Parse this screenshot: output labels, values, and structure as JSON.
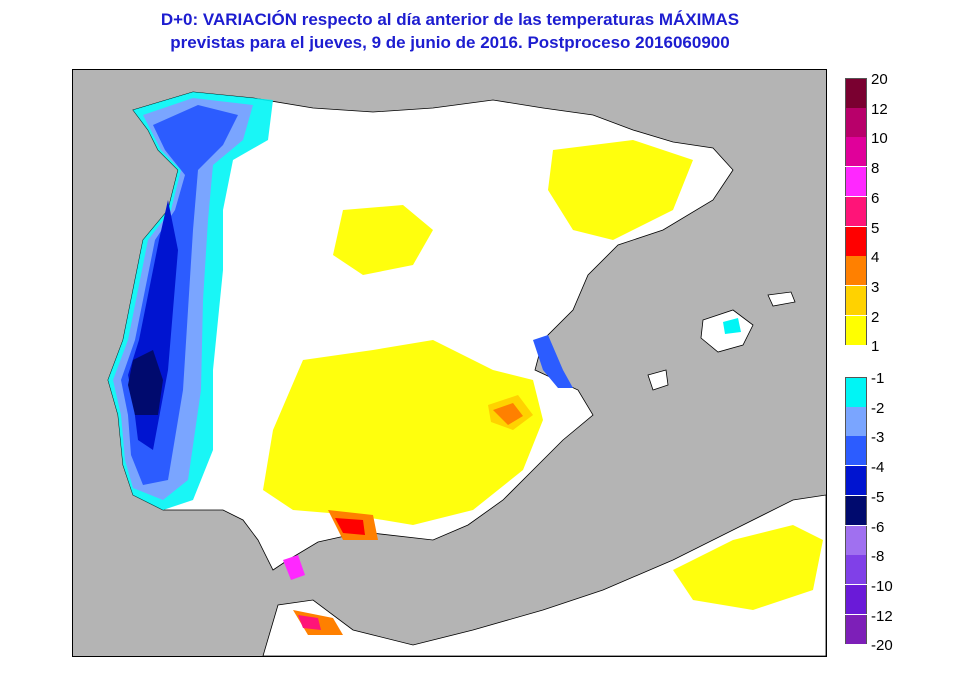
{
  "title": {
    "line1": "D+0:  VARIACIÓN respecto al día anterior de las temperaturas MÁXIMAS",
    "line2": "previstas para el jueves, 9 de junio de 2016. Postproceso 2016060900"
  },
  "legend": {
    "positive": [
      {
        "label": "20",
        "color": "#7a0030"
      },
      {
        "label": "12",
        "color": "#b8006a"
      },
      {
        "label": "10",
        "color": "#e0009a"
      },
      {
        "label": "8",
        "color": "#ff28ff"
      },
      {
        "label": "6",
        "color": "#ff1478"
      },
      {
        "label": "5",
        "color": "#ff0000"
      },
      {
        "label": "4",
        "color": "#ff8000"
      },
      {
        "label": "3",
        "color": "#ffd200"
      },
      {
        "label": "2",
        "color": "#ffff00"
      },
      {
        "label": "1",
        "color": ""
      }
    ],
    "negative": [
      {
        "label": "-1",
        "color": "#00f5f5"
      },
      {
        "label": "-2",
        "color": "#7aa5ff"
      },
      {
        "label": "-3",
        "color": "#2c5cff"
      },
      {
        "label": "-4",
        "color": "#0014d0"
      },
      {
        "label": "-5",
        "color": "#000a6e"
      },
      {
        "label": "-6",
        "color": "#a070f0"
      },
      {
        "label": "-8",
        "color": "#8040e8"
      },
      {
        "label": "-10",
        "color": "#6a1ad8"
      },
      {
        "label": "-12",
        "color": "#7d1fb8"
      },
      {
        "label": "-20",
        "color": ""
      }
    ]
  },
  "colors": {
    "sea": "#b4b4b4",
    "land": "#ffffff",
    "border": "#000000",
    "title": "#1d1dd0"
  }
}
